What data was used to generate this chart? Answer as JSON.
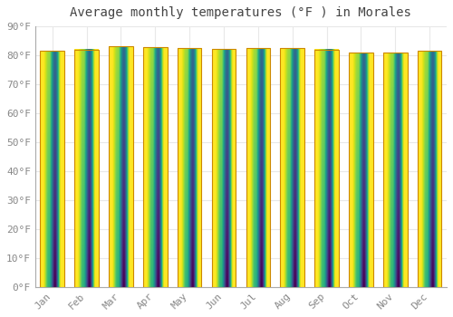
{
  "title": "Average monthly temperatures (°F ) in Morales",
  "months": [
    "Jan",
    "Feb",
    "Mar",
    "Apr",
    "May",
    "Jun",
    "Jul",
    "Aug",
    "Sep",
    "Oct",
    "Nov",
    "Dec"
  ],
  "values": [
    81.5,
    82.0,
    83.0,
    82.8,
    82.5,
    82.2,
    82.5,
    82.5,
    82.0,
    81.0,
    81.0,
    81.5
  ],
  "bar_color_mid": "#FFC94A",
  "bar_color_bottom": "#FFA500",
  "bar_color_top": "#FFD966",
  "bar_edge_color": "#CC8800",
  "ylim": [
    0,
    90
  ],
  "ytick_values": [
    0,
    10,
    20,
    30,
    40,
    50,
    60,
    70,
    80,
    90
  ],
  "ytick_labels": [
    "0°F",
    "10°F",
    "20°F",
    "30°F",
    "40°F",
    "50°F",
    "60°F",
    "70°F",
    "80°F",
    "90°F"
  ],
  "background_color": "#ffffff",
  "plot_bg_color": "#ffffff",
  "grid_color": "#e8e8e8",
  "title_fontsize": 10,
  "tick_fontsize": 8,
  "font_family": "monospace",
  "title_color": "#444444",
  "tick_color": "#888888",
  "bar_width": 0.7
}
